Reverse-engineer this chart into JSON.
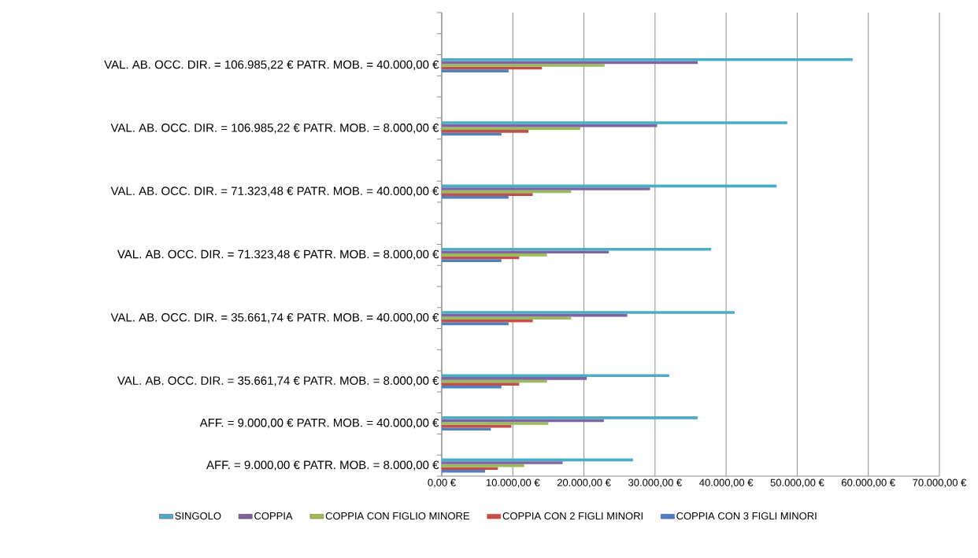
{
  "chart_data": {
    "type": "bar",
    "orientation": "horizontal",
    "categories": [
      null,
      null,
      "VAL. AB. OCC. DIR. = 106.985,22 € PATR. MOB. = 40.000,00 €",
      null,
      null,
      "VAL. AB. OCC. DIR. = 106.985,22 € PATR. MOB. = 8.000,00 €",
      null,
      null,
      "VAL. AB. OCC. DIR. = 71.323,48 € PATR. MOB. = 40.000,00 €",
      null,
      null,
      "VAL. AB. OCC. DIR. = 71.323,48 € PATR. MOB. = 8.000,00 €",
      null,
      null,
      "VAL. AB. OCC. DIR. = 35.661,74 € PATR. MOB. = 40.000,00 €",
      null,
      null,
      "VAL. AB. OCC. DIR. = 35.661,74 € PATR. MOB. = 8.000,00 €",
      null,
      "AFF. = 9.000,00 € PATR. MOB. = 40.000,00 €",
      null,
      "AFF. = 9.000,00 € PATR. MOB. = 8.000,00 €"
    ],
    "series": [
      {
        "name": "SINGOLO",
        "color": "#4bacc6",
        "values": [
          null,
          null,
          57800,
          null,
          null,
          48600,
          null,
          null,
          47100,
          null,
          null,
          37900,
          null,
          null,
          41200,
          null,
          null,
          32000,
          null,
          36000,
          null,
          26900
        ]
      },
      {
        "name": "COPPIA",
        "color": "#8064a2",
        "values": [
          null,
          null,
          36000,
          null,
          null,
          30300,
          null,
          null,
          29300,
          null,
          null,
          23500,
          null,
          null,
          26100,
          null,
          null,
          20400,
          null,
          22800,
          null,
          17000
        ]
      },
      {
        "name": "COPPIA CON FIGLIO MINORE",
        "color": "#9bbb59",
        "values": [
          null,
          null,
          22900,
          null,
          null,
          19500,
          null,
          null,
          18200,
          null,
          null,
          14800,
          null,
          null,
          18200,
          null,
          null,
          14800,
          null,
          15000,
          null,
          11600
        ]
      },
      {
        "name": "COPPIA CON 2 FIGLI MINORI",
        "color": "#c0504d",
        "values": [
          null,
          null,
          14100,
          null,
          null,
          12200,
          null,
          null,
          12800,
          null,
          null,
          10900,
          null,
          null,
          12800,
          null,
          null,
          10900,
          null,
          9800,
          null,
          7900
        ]
      },
      {
        "name": "COPPIA CON 3 FIGLI MINORI",
        "color": "#4f81bd",
        "values": [
          null,
          null,
          9400,
          null,
          null,
          8400,
          null,
          null,
          9400,
          null,
          null,
          8400,
          null,
          null,
          9400,
          null,
          null,
          8400,
          null,
          6900,
          null,
          6100
        ]
      }
    ],
    "xlim": [
      0,
      70000
    ],
    "xticks": [
      {
        "value": 0,
        "label": "0,00 €"
      },
      {
        "value": 10000,
        "label": "10.000,00 €"
      },
      {
        "value": 20000,
        "label": "20.000,00 €"
      },
      {
        "value": 30000,
        "label": "30.000,00 €"
      },
      {
        "value": 40000,
        "label": "40.000,00 €"
      },
      {
        "value": 50000,
        "label": "50.000,00 €"
      },
      {
        "value": 60000,
        "label": "60.000,00 €"
      },
      {
        "value": 70000,
        "label": "70.000,00 €"
      }
    ],
    "grid": "x",
    "legend": "bottom"
  }
}
